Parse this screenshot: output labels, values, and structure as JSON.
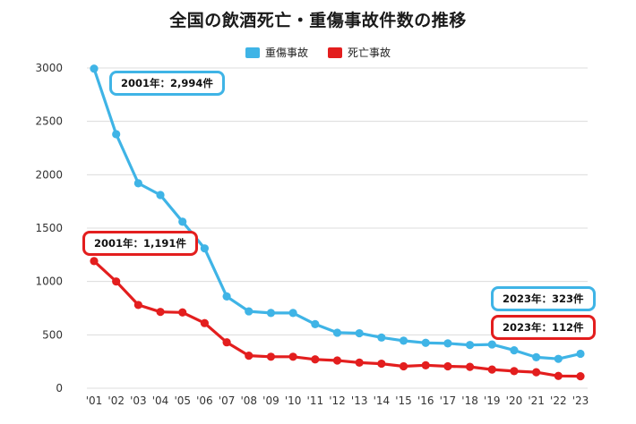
{
  "chart_data": {
    "type": "line",
    "title": "全国の飲酒死亡・重傷事故件数の推移",
    "xlabel": "",
    "ylabel": "",
    "categories": [
      "'01",
      "'02",
      "'03",
      "'04",
      "'05",
      "'06",
      "'07",
      "'08",
      "'09",
      "'10",
      "'11",
      "'12",
      "'13",
      "'14",
      "'15",
      "'16",
      "'17",
      "'18",
      "'19",
      "'20",
      "'21",
      "'22",
      "'23"
    ],
    "ylim": [
      0,
      3000
    ],
    "yticks": [
      0,
      500,
      1000,
      1500,
      2000,
      2500,
      3000
    ],
    "grid": true,
    "legend_position": "top-center",
    "series": [
      {
        "name": "重傷事故",
        "color": "#3fb4e6",
        "values": [
          2994,
          2380,
          1920,
          1810,
          1560,
          1310,
          860,
          720,
          705,
          705,
          600,
          520,
          515,
          475,
          445,
          425,
          420,
          405,
          410,
          355,
          290,
          275,
          323
        ]
      },
      {
        "name": "死亡事故",
        "color": "#e31e1e",
        "values": [
          1191,
          1000,
          780,
          715,
          710,
          610,
          430,
          305,
          295,
          295,
          270,
          260,
          240,
          230,
          205,
          215,
          205,
          200,
          175,
          160,
          150,
          115,
          112
        ]
      }
    ],
    "annotations": [
      {
        "text": "2001年：2,994件",
        "series": 0,
        "color": "#3fb4e6"
      },
      {
        "text": "2001年：1,191件",
        "series": 1,
        "color": "#e31e1e"
      },
      {
        "text": "2023年：323件",
        "series": 0,
        "color": "#3fb4e6"
      },
      {
        "text": "2023年：112件",
        "series": 1,
        "color": "#e31e1e"
      }
    ]
  }
}
